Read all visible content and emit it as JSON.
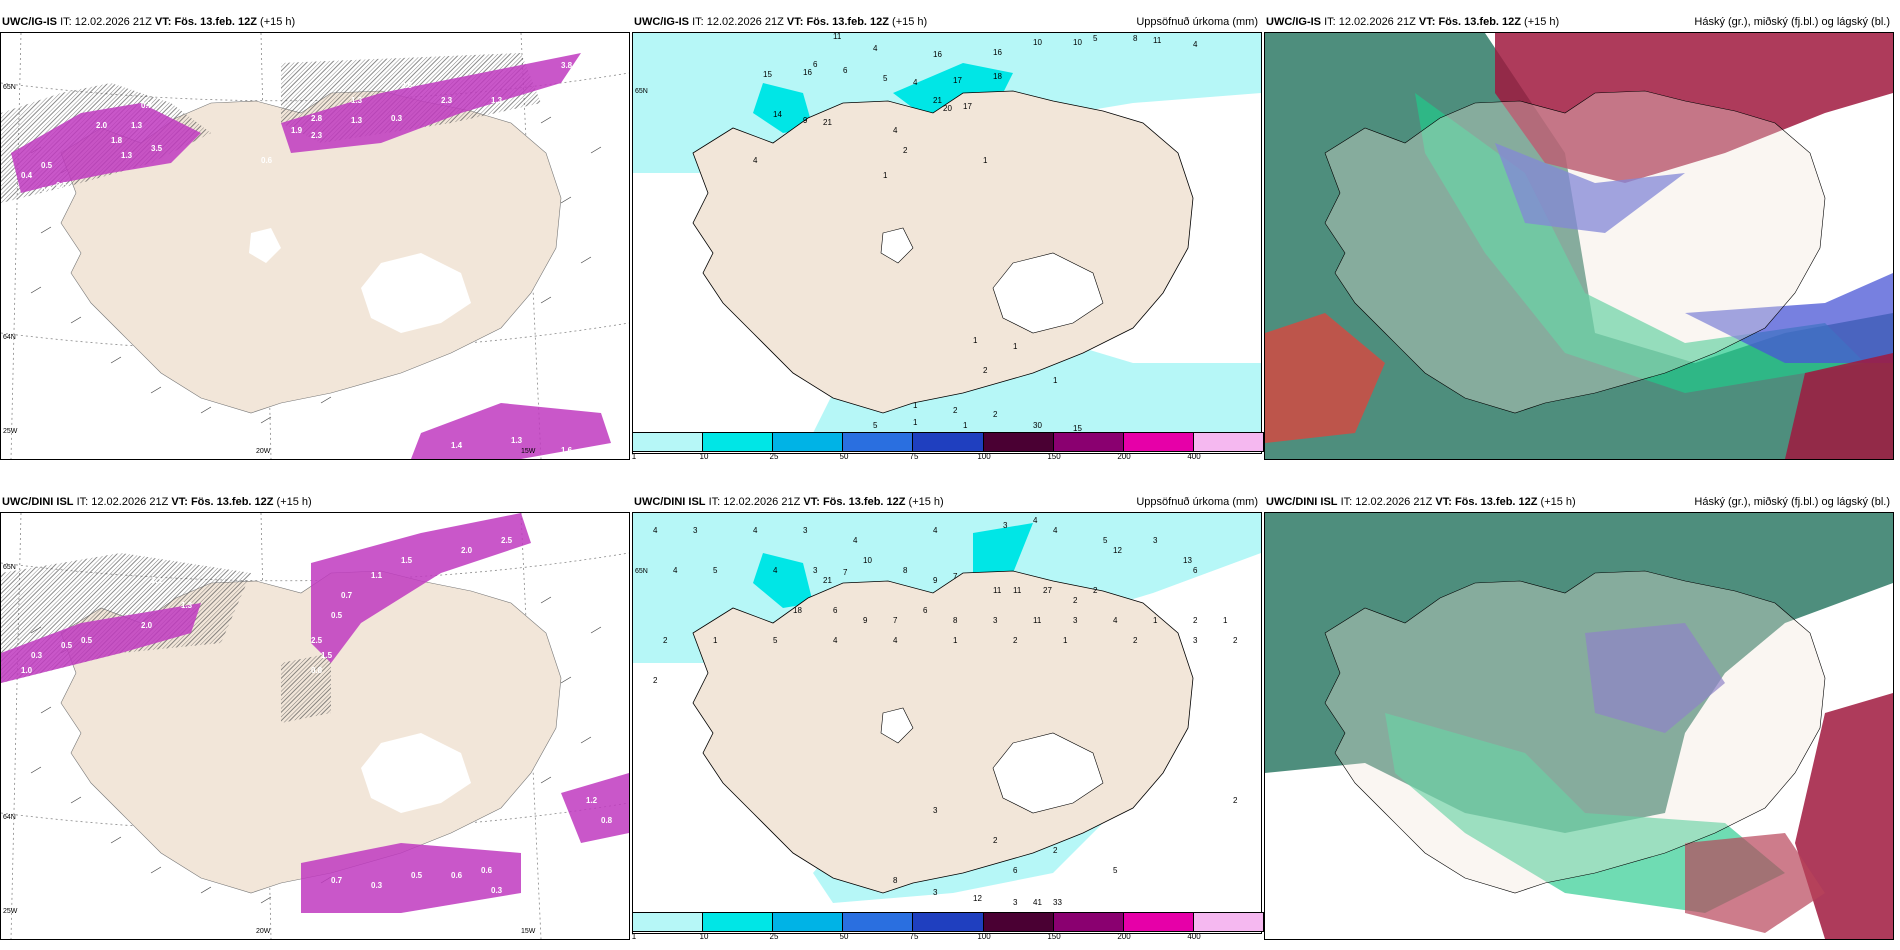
{
  "rows": [
    {
      "model": "UWC/IG-IS",
      "panels": [
        {
          "it_label": "IT:",
          "it_value": "12.02.2026 21Z",
          "vt_label": "VT:",
          "vt_value": "Fös. 13.feb. 12Z",
          "lead": "(+15 h)",
          "right_title": "",
          "gridlabels": [
            "65N",
            "64N",
            "25W",
            "20W",
            "15W"
          ],
          "values": [
            "3.8",
            "2.3",
            "1.3",
            "2.6",
            "1.3",
            "1.9",
            "2.8",
            "2.3",
            "1.3",
            "0.3",
            "0.7",
            "1.8",
            "0.5",
            "0.4",
            "0.5",
            "0.4",
            "1.3",
            "3.5",
            "2.0",
            "1.3",
            "0.6",
            "1.4",
            "1.3",
            "1.6"
          ]
        },
        {
          "it_label": "IT:",
          "it_value": "12.02.2026 21Z",
          "vt_label": "VT:",
          "vt_value": "Fös. 13.feb. 12Z",
          "lead": "(+15 h)",
          "right_title": "Uppsöfnuð úrkoma (mm)",
          "gridlabels": [
            "65N"
          ],
          "values": [
            "11",
            "4",
            "6",
            "16",
            "16",
            "10",
            "10",
            "5",
            "8",
            "11",
            "4",
            "15",
            "16",
            "6",
            "5",
            "4",
            "17",
            "18",
            "21",
            "20",
            "17",
            "14",
            "9",
            "21",
            "4",
            "2",
            "4",
            "1",
            "1",
            "1",
            "1",
            "2",
            "1",
            "1",
            "2",
            "2",
            "1",
            "5",
            "1",
            "30",
            "15"
          ]
        },
        {
          "it_label": "IT:",
          "it_value": "12.02.2026 21Z",
          "vt_label": "VT:",
          "vt_value": "Fös. 13.feb. 12Z",
          "lead": "(+15 h)",
          "right_title": "Háský (gr.), miðský (fj.bl.) og lágský (bl.)"
        }
      ]
    },
    {
      "model": "UWC/DINI ISL",
      "panels": [
        {
          "it_label": "IT:",
          "it_value": "12.02.2026 21Z",
          "vt_label": "VT:",
          "vt_value": "Fös. 13.feb. 12Z",
          "lead": "(+15 h)",
          "right_title": "",
          "gridlabels": [
            "65N",
            "64N",
            "25W",
            "20W",
            "15W"
          ],
          "values": [
            "2.5",
            "2.0",
            "1.5",
            "1.1",
            "0.7",
            "0.5",
            "1.3",
            "2.0",
            "0.5",
            "0.3",
            "1.0",
            "2.5",
            "1.5",
            "0.8",
            "1.1",
            "0.5",
            "0.7",
            "0.3",
            "0.5",
            "0.6",
            "0.6",
            "1.2",
            "0.8",
            "0.3"
          ]
        },
        {
          "it_label": "IT:",
          "it_value": "12.02.2026 21Z",
          "vt_label": "VT:",
          "vt_value": "Fös. 13.feb. 12Z",
          "lead": "(+15 h)",
          "right_title": "Uppsöfnuð úrkoma (mm)",
          "gridlabels": [
            "65N"
          ],
          "values": [
            "4",
            "3",
            "4",
            "3",
            "4",
            "4",
            "3",
            "4",
            "4",
            "5",
            "12",
            "3",
            "13",
            "6",
            "4",
            "5",
            "4",
            "3",
            "21",
            "7",
            "10",
            "8",
            "9",
            "7",
            "11",
            "11",
            "27",
            "2",
            "2",
            "18",
            "6",
            "9",
            "7",
            "6",
            "8",
            "3",
            "11",
            "3",
            "4",
            "1",
            "2",
            "1",
            "2",
            "1",
            "5",
            "4",
            "4",
            "1",
            "2",
            "1",
            "2",
            "3",
            "2",
            "2",
            "2",
            "3",
            "2",
            "6",
            "2",
            "5",
            "8",
            "3",
            "12",
            "3",
            "41",
            "33"
          ]
        },
        {
          "it_label": "IT:",
          "it_value": "12.02.2026 21Z",
          "vt_label": "VT:",
          "vt_value": "Fös. 13.feb. 12Z",
          "lead": "(+15 h)",
          "right_title": "Háský (gr.), miðský (fj.bl.) og lágský (bl.)"
        }
      ]
    }
  ],
  "colorbar": {
    "ticks": [
      "1",
      "10",
      "25",
      "50",
      "75",
      "100",
      "150",
      "200",
      "400"
    ],
    "colors": [
      "#b6f7f7",
      "#00e6e6",
      "#00b3e6",
      "#2a6fe0",
      "#1f3fbf",
      "#4a0033",
      "#8a0070",
      "#e600a8",
      "#f5b8f0"
    ]
  },
  "colors": {
    "land": "#f2e6d9",
    "glacier": "#ffffff",
    "precip_light": "#b6f7f7",
    "precip_mid": "#00e6e6",
    "wind": "#c03ac0"
  }
}
